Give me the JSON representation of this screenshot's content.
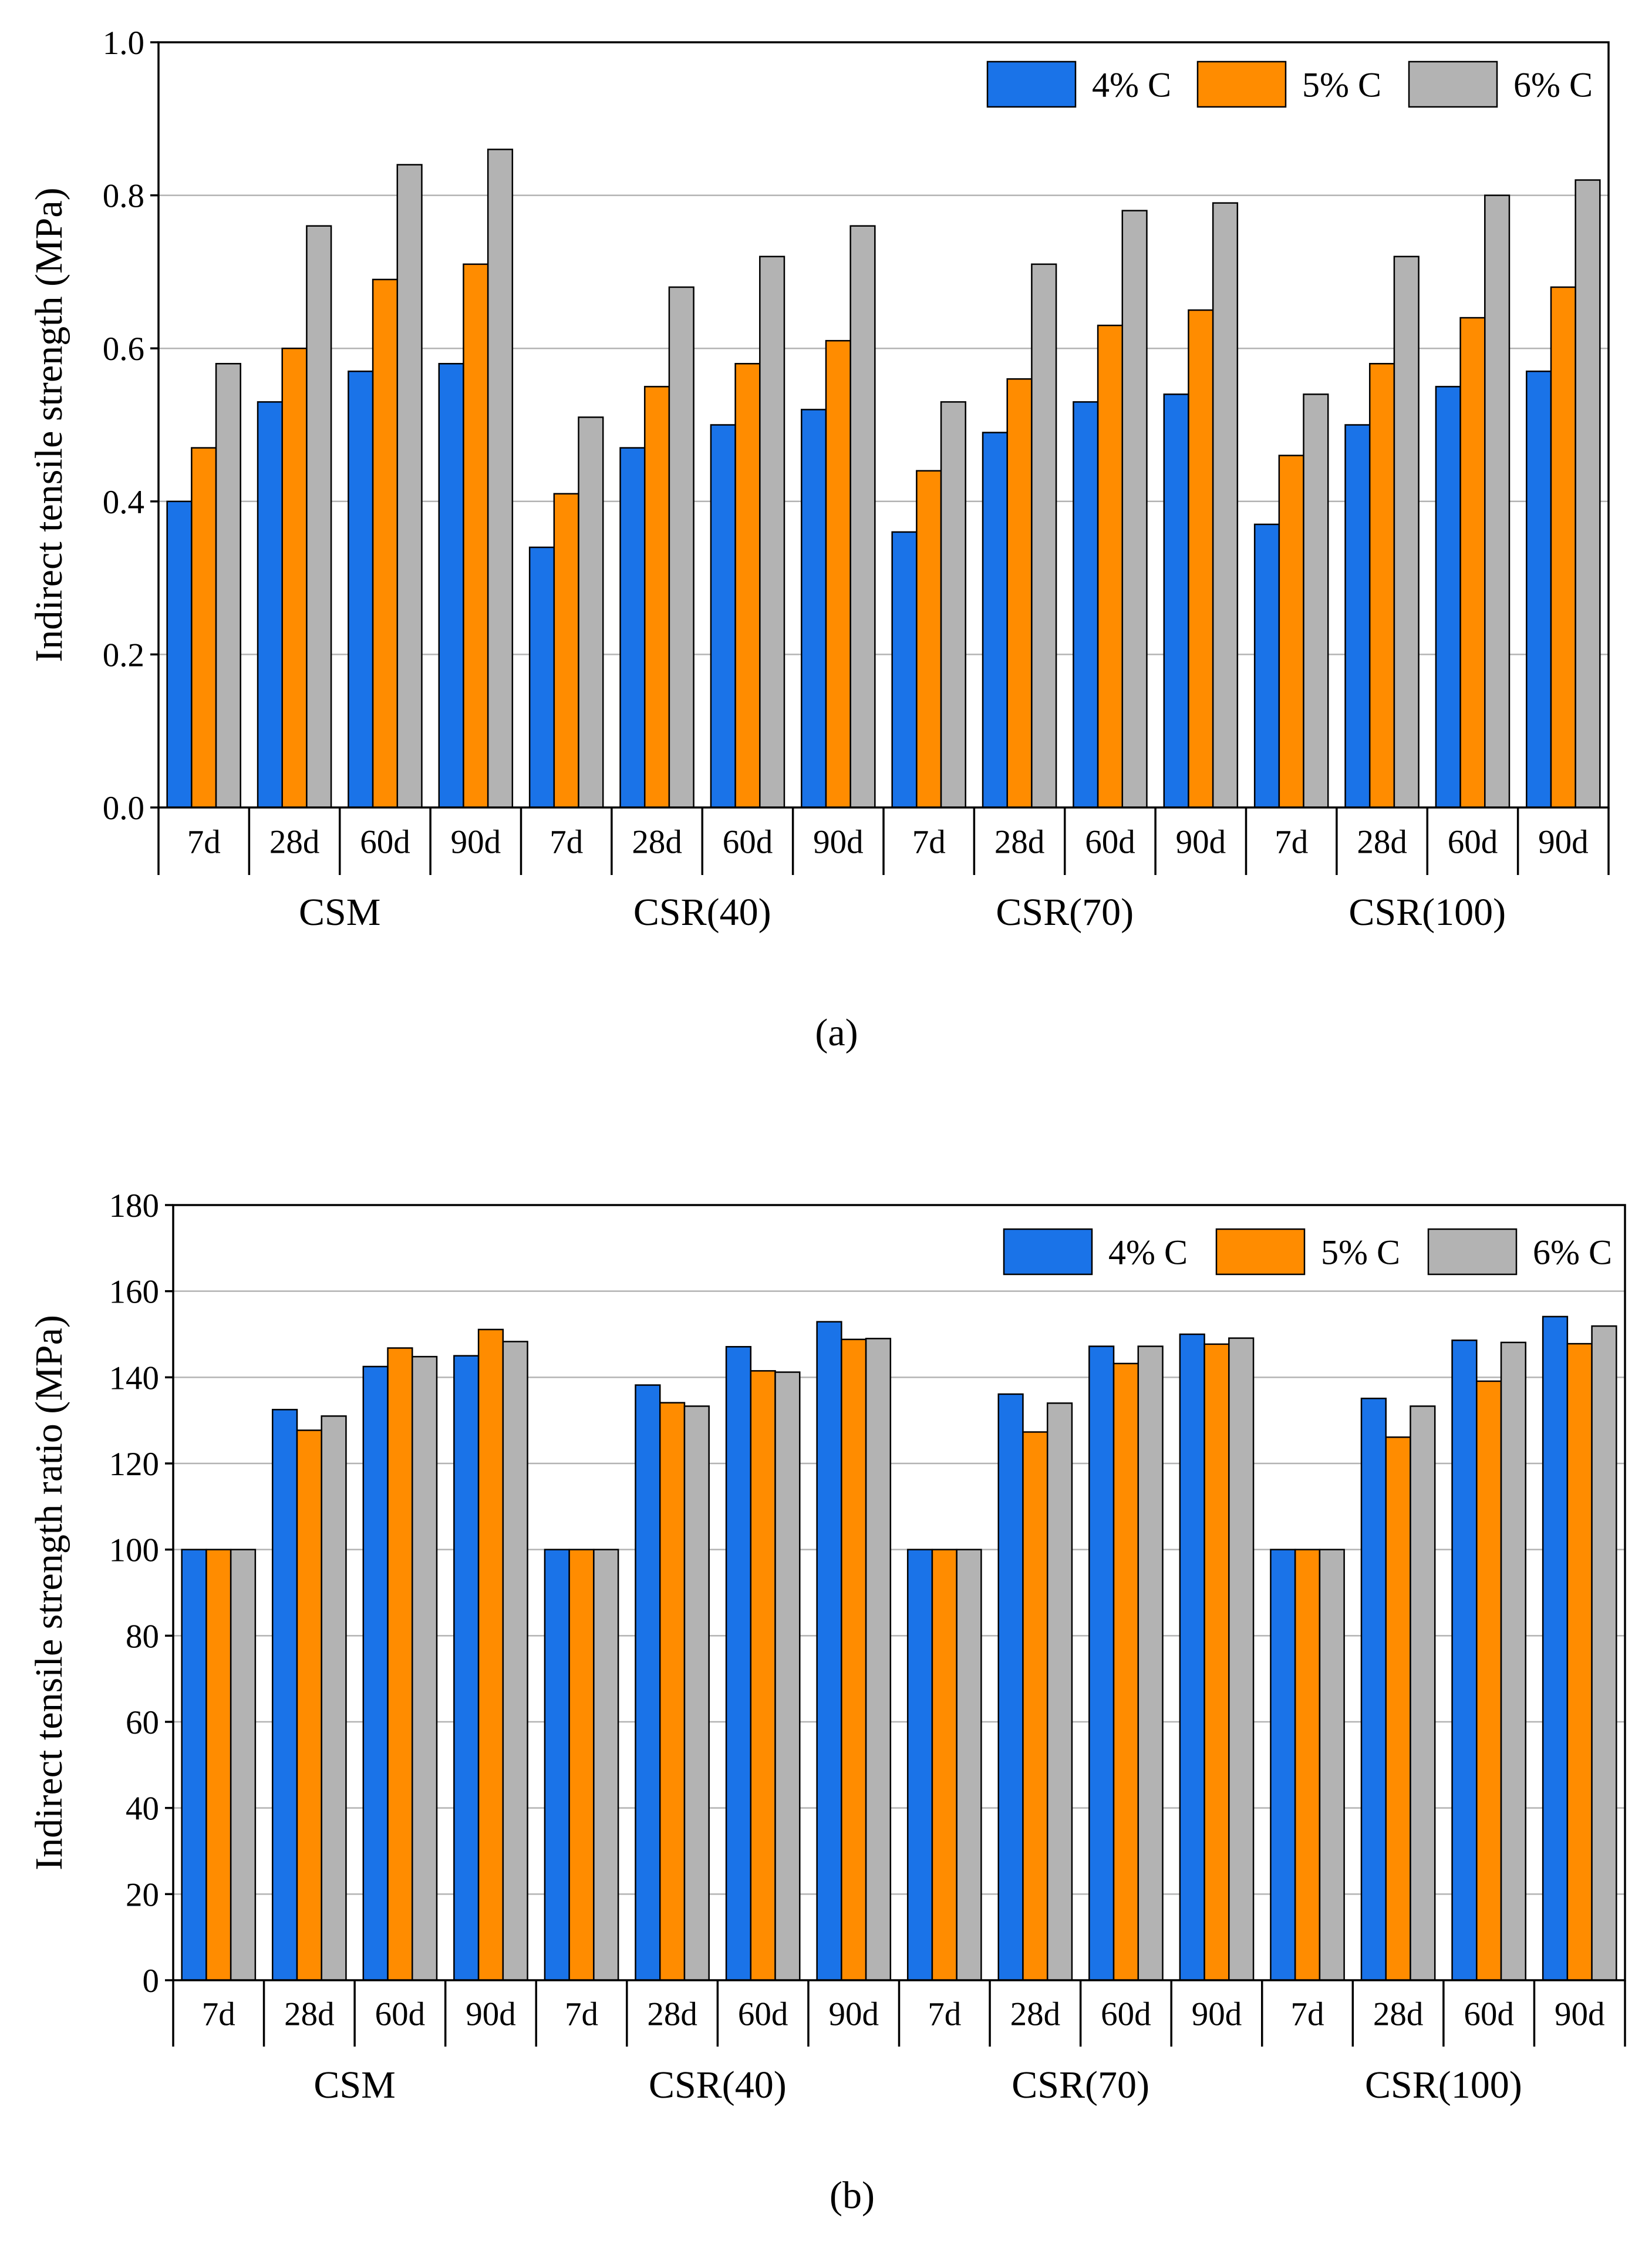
{
  "chart_data": [
    {
      "type": "bar",
      "panel": "(a)",
      "ylabel": "Indirect tensile strength (MPa)",
      "ylim": [
        0,
        1.0
      ],
      "yticks": [
        "0.0",
        "0.2",
        "0.4",
        "0.6",
        "0.8",
        "1.0"
      ],
      "groups": [
        "CSM",
        "CSR(40)",
        "CSR(70)",
        "CSR(100)"
      ],
      "categories": [
        "7d",
        "28d",
        "60d",
        "90d",
        "7d",
        "28d",
        "60d",
        "90d",
        "7d",
        "28d",
        "60d",
        "90d",
        "7d",
        "28d",
        "60d",
        "90d"
      ],
      "grid": true,
      "legend_position": "top-right",
      "series": [
        {
          "name": "4% C",
          "color": "#1a73e8",
          "values": [
            0.4,
            0.53,
            0.57,
            0.58,
            0.34,
            0.47,
            0.5,
            0.52,
            0.36,
            0.49,
            0.53,
            0.54,
            0.37,
            0.5,
            0.55,
            0.57
          ]
        },
        {
          "name": "5% C",
          "color": "#ff8c00",
          "values": [
            0.47,
            0.6,
            0.69,
            0.71,
            0.41,
            0.55,
            0.58,
            0.61,
            0.44,
            0.56,
            0.63,
            0.65,
            0.46,
            0.58,
            0.64,
            0.68
          ]
        },
        {
          "name": "6% C",
          "color": "#b3b3b3",
          "values": [
            0.58,
            0.76,
            0.84,
            0.86,
            0.51,
            0.68,
            0.72,
            0.76,
            0.53,
            0.71,
            0.78,
            0.79,
            0.54,
            0.72,
            0.8,
            0.82
          ]
        }
      ]
    },
    {
      "type": "bar",
      "panel": "(b)",
      "ylabel": "Indirect tensile strength ratio (MPa)",
      "ylim": [
        0,
        180
      ],
      "yticks": [
        "0",
        "20",
        "40",
        "60",
        "80",
        "100",
        "120",
        "140",
        "160",
        "180"
      ],
      "groups": [
        "CSM",
        "CSR(40)",
        "CSR(70)",
        "CSR(100)"
      ],
      "categories": [
        "7d",
        "28d",
        "60d",
        "90d",
        "7d",
        "28d",
        "60d",
        "90d",
        "7d",
        "28d",
        "60d",
        "90d",
        "7d",
        "28d",
        "60d",
        "90d"
      ],
      "grid": true,
      "legend_position": "top-right",
      "series": [
        {
          "name": "4% C",
          "color": "#1a73e8",
          "values": [
            100,
            132.5,
            142.5,
            145,
            100,
            138.2,
            147.1,
            152.9,
            100,
            136.1,
            147.2,
            150,
            100,
            135.1,
            148.6,
            154.1
          ]
        },
        {
          "name": "5% C",
          "color": "#ff8c00",
          "values": [
            100,
            127.7,
            146.8,
            151.1,
            100,
            134.1,
            141.5,
            148.8,
            100,
            127.3,
            143.2,
            147.7,
            100,
            126.1,
            139.1,
            147.8
          ]
        },
        {
          "name": "6% C",
          "color": "#b3b3b3",
          "values": [
            100,
            131,
            144.8,
            148.3,
            100,
            133.3,
            141.2,
            149,
            100,
            134,
            147.2,
            149.1,
            100,
            133.3,
            148.1,
            151.9
          ]
        }
      ]
    }
  ]
}
